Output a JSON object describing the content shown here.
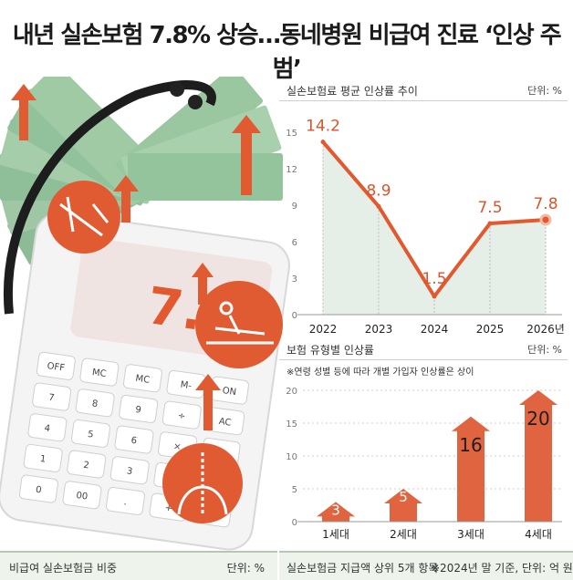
{
  "headline": "내년 실손보험 7.8% 상승…동네병원 비급여 진료 ‘인상 주범’",
  "calculator": {
    "display": "7.8",
    "display_unit": "%",
    "keys": [
      "OFF",
      "MC",
      "MC",
      "M-",
      "ON",
      "7",
      "8",
      "9",
      "÷",
      "AC",
      "4",
      "5",
      "6",
      "×",
      "C",
      "1",
      "2",
      "3",
      "−",
      "M+",
      "0",
      "00",
      ".",
      "+",
      "="
    ]
  },
  "colors": {
    "accent": "#e2582f",
    "fill": "#e5efe7",
    "bar": "#e06440",
    "money": "#7cae86"
  },
  "chart_data": [
    {
      "type": "line",
      "title": "실손보험료 평균 인상률 추이",
      "unit": "단위: %",
      "categories": [
        "2022",
        "2023",
        "2024",
        "2025",
        "2026년"
      ],
      "values": [
        14.2,
        8.9,
        1.5,
        7.5,
        7.8
      ],
      "value_labels": [
        "14.2",
        "8.9",
        "1.5",
        "7.5",
        "7.8"
      ],
      "yticks": [
        "0",
        "3",
        "6",
        "9",
        "12",
        "15"
      ],
      "ylim": [
        0,
        15
      ],
      "grid": false
    },
    {
      "type": "bar",
      "title": "보험 유형별 인상률",
      "unit": "단위: %",
      "note": "※연령 성별 등에 따라 개별 가입자 인상률은 상이",
      "categories": [
        "1세대",
        "2세대",
        "3세대",
        "4세대"
      ],
      "values": [
        3,
        5,
        16,
        20
      ],
      "value_labels": [
        "3",
        "5",
        "16",
        "20"
      ],
      "yticks": [
        "0",
        "5",
        "10",
        "15",
        "20"
      ],
      "ylim": [
        0,
        20
      ]
    }
  ],
  "bottom": {
    "left_title": "비급여 실손보험금 비중",
    "left_unit": "단위: %",
    "right_title": "실손보험금 지급액 상위 5개 항목",
    "right_note": "※2024년 말 기준, 단위: 억 원"
  }
}
